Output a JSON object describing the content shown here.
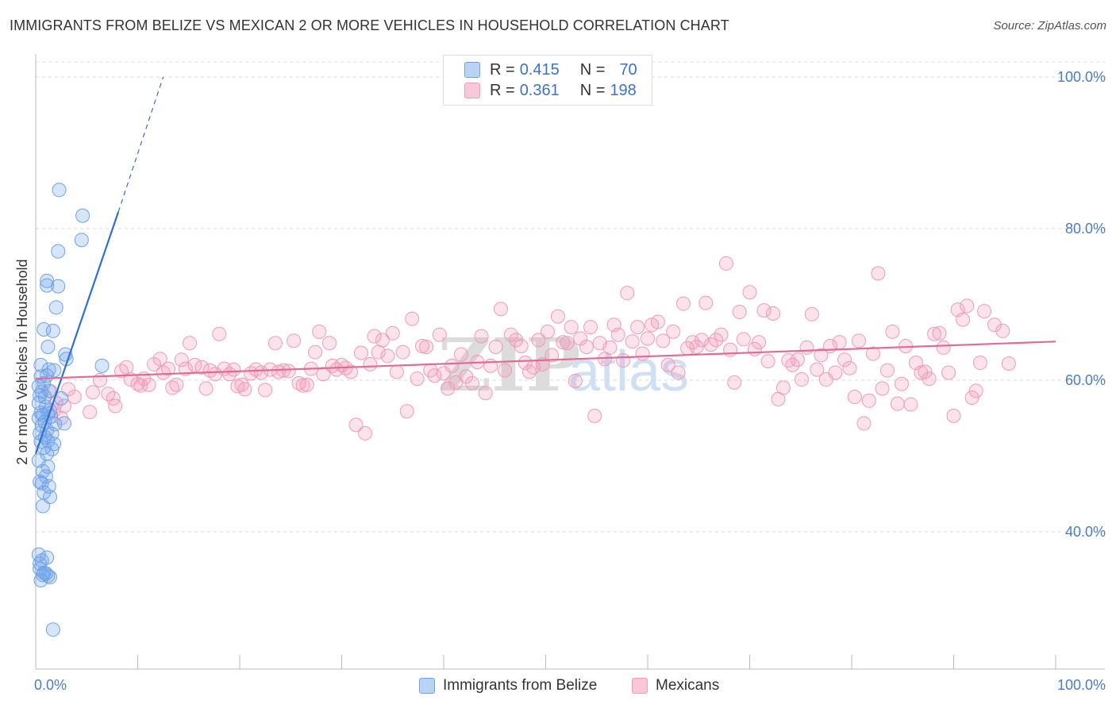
{
  "title": "IMMIGRANTS FROM BELIZE VS MEXICAN 2 OR MORE VEHICLES IN HOUSEHOLD CORRELATION CHART",
  "source": "Source: ZipAtlas.com",
  "watermark": "ZIPatlas",
  "colors": {
    "belize": "#6fa3e8",
    "belize_line": "#2f6fd1",
    "mexican": "#f29ab7",
    "mexican_line": "#e06b96",
    "tick": "#4a7cc9"
  },
  "legend": {
    "rows": [
      {
        "r_label": "R =",
        "r_value": "0.415",
        "n_label": "N =",
        "n_value": "70"
      },
      {
        "r_label": "R =",
        "r_value": "0.361",
        "n_label": "N =",
        "n_value": "198"
      }
    ]
  },
  "bottom_legend": [
    "Immigrants from Belize",
    "Mexicans"
  ],
  "chart_data": {
    "type": "scatter",
    "title": "IMMIGRANTS FROM BELIZE VS MEXICAN 2 OR MORE VEHICLES IN HOUSEHOLD CORRELATION CHART",
    "xlabel": "",
    "ylabel": "2 or more Vehicles in Household",
    "xlim": [
      0,
      100
    ],
    "ylim": [
      20,
      102
    ],
    "x_tick_labels": [
      "0.0%",
      "100.0%"
    ],
    "y_ticks": [
      40,
      60,
      80,
      100
    ],
    "y_tick_labels": [
      "40.0%",
      "60.0%",
      "80.0%",
      "100.0%"
    ],
    "grid": "horizontal dashed",
    "legend_position": "top-center",
    "series": [
      {
        "name": "Immigrants from Belize",
        "color": "#6fa3e8",
        "trend": {
          "x0": 0,
          "y0": 50.3,
          "x1": 8.1,
          "y1": 82.2,
          "dashed_to_x": 12.5,
          "dashed_to_y": 100
        },
        "points": [
          [
            2.3,
            85.1
          ],
          [
            4.6,
            81.7
          ],
          [
            4.5,
            78.5
          ],
          [
            2.2,
            77.0
          ],
          [
            1.1,
            73.1
          ],
          [
            2.2,
            72.4
          ],
          [
            1.1,
            72.5
          ],
          [
            2.0,
            69.6
          ],
          [
            0.8,
            66.7
          ],
          [
            1.7,
            66.5
          ],
          [
            1.2,
            64.4
          ],
          [
            0.5,
            62.0
          ],
          [
            2.9,
            63.4
          ],
          [
            3.0,
            62.8
          ],
          [
            1.3,
            61.4
          ],
          [
            1.8,
            61.3
          ],
          [
            6.5,
            61.9
          ],
          [
            0.5,
            60.5
          ],
          [
            1.1,
            60.6
          ],
          [
            0.8,
            59.6
          ],
          [
            0.3,
            59.2
          ],
          [
            0.6,
            58.5
          ],
          [
            1.3,
            58.6
          ],
          [
            0.4,
            58.0
          ],
          [
            0.9,
            57.8
          ],
          [
            2.5,
            57.6
          ],
          [
            0.3,
            57.0
          ],
          [
            1.0,
            56.5
          ],
          [
            1.4,
            56.0
          ],
          [
            0.5,
            55.7
          ],
          [
            0.7,
            55.4
          ],
          [
            1.2,
            55.6
          ],
          [
            1.5,
            55.2
          ],
          [
            0.3,
            55.0
          ],
          [
            0.9,
            54.5
          ],
          [
            1.9,
            54.2
          ],
          [
            2.8,
            54.3
          ],
          [
            0.6,
            54.0
          ],
          [
            1.1,
            53.4
          ],
          [
            0.4,
            53.0
          ],
          [
            1.6,
            52.9
          ],
          [
            0.9,
            52.5
          ],
          [
            1.2,
            52.0
          ],
          [
            0.5,
            51.9
          ],
          [
            1.8,
            51.6
          ],
          [
            0.8,
            51.1
          ],
          [
            1.6,
            50.9
          ],
          [
            1.1,
            50.3
          ],
          [
            0.3,
            49.4
          ],
          [
            1.2,
            48.6
          ],
          [
            0.7,
            48.0
          ],
          [
            1.0,
            47.3
          ],
          [
            0.4,
            46.6
          ],
          [
            0.6,
            46.4
          ],
          [
            1.3,
            46.0
          ],
          [
            0.8,
            45.2
          ],
          [
            1.4,
            44.6
          ],
          [
            0.7,
            43.4
          ],
          [
            0.3,
            37.0
          ],
          [
            0.6,
            36.2
          ],
          [
            0.4,
            35.8
          ],
          [
            1.0,
            34.5
          ],
          [
            0.7,
            34.3
          ],
          [
            1.2,
            34.2
          ],
          [
            1.4,
            34.0
          ],
          [
            0.5,
            33.6
          ],
          [
            1.7,
            27.1
          ],
          [
            0.8,
            34.6
          ],
          [
            0.4,
            35.1
          ],
          [
            1.1,
            36.6
          ]
        ]
      },
      {
        "name": "Mexicans",
        "color": "#f29ab7",
        "trend": {
          "x0": 0,
          "y0": 60.2,
          "x1": 100,
          "y1": 65.1
        },
        "points": [
          [
            1.5,
            58.5
          ],
          [
            2.0,
            57.0
          ],
          [
            2.8,
            56.6
          ],
          [
            3.2,
            58.8
          ],
          [
            3.8,
            57.8
          ],
          [
            1.8,
            56.0
          ],
          [
            2.5,
            55.0
          ],
          [
            5.3,
            55.8
          ],
          [
            5.6,
            58.4
          ],
          [
            6.3,
            60.0
          ],
          [
            7.1,
            58.2
          ],
          [
            7.6,
            57.6
          ],
          [
            7.8,
            56.6
          ],
          [
            8.4,
            61.2
          ],
          [
            8.9,
            61.7
          ],
          [
            9.3,
            60.1
          ],
          [
            10.0,
            59.5
          ],
          [
            10.3,
            59.3
          ],
          [
            10.6,
            60.2
          ],
          [
            11.1,
            59.4
          ],
          [
            11.6,
            62.1
          ],
          [
            12.2,
            62.8
          ],
          [
            12.5,
            61.0
          ],
          [
            13.0,
            61.5
          ],
          [
            13.4,
            59.0
          ],
          [
            13.8,
            59.4
          ],
          [
            14.3,
            62.7
          ],
          [
            14.7,
            61.5
          ],
          [
            15.1,
            64.9
          ],
          [
            15.6,
            62.0
          ],
          [
            16.3,
            61.7
          ],
          [
            16.7,
            58.9
          ],
          [
            17.1,
            61.3
          ],
          [
            17.6,
            60.8
          ],
          [
            18.0,
            66.1
          ],
          [
            18.5,
            61.5
          ],
          [
            19.0,
            60.8
          ],
          [
            19.4,
            61.4
          ],
          [
            19.8,
            59.2
          ],
          [
            20.2,
            59.4
          ],
          [
            20.5,
            58.8
          ],
          [
            21.1,
            60.9
          ],
          [
            21.6,
            61.4
          ],
          [
            22.1,
            61.0
          ],
          [
            22.5,
            58.7
          ],
          [
            23.0,
            61.4
          ],
          [
            23.5,
            64.9
          ],
          [
            23.8,
            61.1
          ],
          [
            24.3,
            61.3
          ],
          [
            24.8,
            61.2
          ],
          [
            25.3,
            65.2
          ],
          [
            25.8,
            59.6
          ],
          [
            26.2,
            59.3
          ],
          [
            26.6,
            59.4
          ],
          [
            27.0,
            61.5
          ],
          [
            27.4,
            63.7
          ],
          [
            27.8,
            66.4
          ],
          [
            28.2,
            60.8
          ],
          [
            28.8,
            64.9
          ],
          [
            29.1,
            61.9
          ],
          [
            29.5,
            61.4
          ],
          [
            30.0,
            62.0
          ],
          [
            30.4,
            61.6
          ],
          [
            30.9,
            61.1
          ],
          [
            31.4,
            54.1
          ],
          [
            31.9,
            63.6
          ],
          [
            32.3,
            53.0
          ],
          [
            32.8,
            62.1
          ],
          [
            33.2,
            65.8
          ],
          [
            33.6,
            63.7
          ],
          [
            34.0,
            65.3
          ],
          [
            34.5,
            63.2
          ],
          [
            35.0,
            66.2
          ],
          [
            35.4,
            61.1
          ],
          [
            36.0,
            63.7
          ],
          [
            36.4,
            55.9
          ],
          [
            36.9,
            68.1
          ],
          [
            37.4,
            60.2
          ],
          [
            37.9,
            64.5
          ],
          [
            38.3,
            64.4
          ],
          [
            38.7,
            61.3
          ],
          [
            39.1,
            60.6
          ],
          [
            39.6,
            66.0
          ],
          [
            40.0,
            60.9
          ],
          [
            40.4,
            58.9
          ],
          [
            40.8,
            61.9
          ],
          [
            41.2,
            59.7
          ],
          [
            41.7,
            63.4
          ],
          [
            42.2,
            60.5
          ],
          [
            42.8,
            59.6
          ],
          [
            43.3,
            62.4
          ],
          [
            43.7,
            65.8
          ],
          [
            44.1,
            58.3
          ],
          [
            44.6,
            61.9
          ],
          [
            45.1,
            64.4
          ],
          [
            45.6,
            69.4
          ],
          [
            46.0,
            61.3
          ],
          [
            46.6,
            66.0
          ],
          [
            47.1,
            65.3
          ],
          [
            47.6,
            64.5
          ],
          [
            48.0,
            62.3
          ],
          [
            48.4,
            61.1
          ],
          [
            48.8,
            61.7
          ],
          [
            49.3,
            65.3
          ],
          [
            49.7,
            62.1
          ],
          [
            50.2,
            66.4
          ],
          [
            50.6,
            63.3
          ],
          [
            51.2,
            68.4
          ],
          [
            51.7,
            65.0
          ],
          [
            52.1,
            64.9
          ],
          [
            52.5,
            67.0
          ],
          [
            52.9,
            59.9
          ],
          [
            53.4,
            65.5
          ],
          [
            54.0,
            64.4
          ],
          [
            54.4,
            67.0
          ],
          [
            54.8,
            55.3
          ],
          [
            55.3,
            64.9
          ],
          [
            55.8,
            62.8
          ],
          [
            56.3,
            64.3
          ],
          [
            56.7,
            67.3
          ],
          [
            57.1,
            66.0
          ],
          [
            57.6,
            62.6
          ],
          [
            58.0,
            71.5
          ],
          [
            58.5,
            65.1
          ],
          [
            59.0,
            67.0
          ],
          [
            59.5,
            63.5
          ],
          [
            60.0,
            65.5
          ],
          [
            60.4,
            67.3
          ],
          [
            61.0,
            67.7
          ],
          [
            61.5,
            65.2
          ],
          [
            62.0,
            62.0
          ],
          [
            62.5,
            66.4
          ],
          [
            63.0,
            61.0
          ],
          [
            63.5,
            70.1
          ],
          [
            63.9,
            64.2
          ],
          [
            64.4,
            65.0
          ],
          [
            64.8,
            64.4
          ],
          [
            65.3,
            65.3
          ],
          [
            65.7,
            70.2
          ],
          [
            66.2,
            64.7
          ],
          [
            66.7,
            65.3
          ],
          [
            67.2,
            66.0
          ],
          [
            67.7,
            75.4
          ],
          [
            68.1,
            64.0
          ],
          [
            68.5,
            59.7
          ],
          [
            69.0,
            69.0
          ],
          [
            69.4,
            65.4
          ],
          [
            70.0,
            71.6
          ],
          [
            70.5,
            64.1
          ],
          [
            70.9,
            65.0
          ],
          [
            71.4,
            69.2
          ],
          [
            71.8,
            62.5
          ],
          [
            72.3,
            68.8
          ],
          [
            72.8,
            57.5
          ],
          [
            73.3,
            59.0
          ],
          [
            73.8,
            62.6
          ],
          [
            74.2,
            62.0
          ],
          [
            74.7,
            62.7
          ],
          [
            75.1,
            60.1
          ],
          [
            75.6,
            64.3
          ],
          [
            76.1,
            68.7
          ],
          [
            76.6,
            61.4
          ],
          [
            77.0,
            63.3
          ],
          [
            77.5,
            60.1
          ],
          [
            77.9,
            64.5
          ],
          [
            78.4,
            61.0
          ],
          [
            78.8,
            65.0
          ],
          [
            79.3,
            62.7
          ],
          [
            79.8,
            61.6
          ],
          [
            80.3,
            57.8
          ],
          [
            80.7,
            65.2
          ],
          [
            81.2,
            54.3
          ],
          [
            81.7,
            57.3
          ],
          [
            82.1,
            63.5
          ],
          [
            82.6,
            74.1
          ],
          [
            83.0,
            58.9
          ],
          [
            83.5,
            61.3
          ],
          [
            84.0,
            66.4
          ],
          [
            84.5,
            56.9
          ],
          [
            84.9,
            59.5
          ],
          [
            85.3,
            64.5
          ],
          [
            85.8,
            56.8
          ],
          [
            86.3,
            62.3
          ],
          [
            86.8,
            61.0
          ],
          [
            87.2,
            61.1
          ],
          [
            87.6,
            60.2
          ],
          [
            88.1,
            66.1
          ],
          [
            88.6,
            66.2
          ],
          [
            89.0,
            64.3
          ],
          [
            89.5,
            61.0
          ],
          [
            90.0,
            55.3
          ],
          [
            90.4,
            69.3
          ],
          [
            90.9,
            68.0
          ],
          [
            91.3,
            69.8
          ],
          [
            91.8,
            57.7
          ],
          [
            92.2,
            58.6
          ],
          [
            92.6,
            62.3
          ],
          [
            93.0,
            69.1
          ],
          [
            94.0,
            67.3
          ],
          [
            94.8,
            66.5
          ],
          [
            95.4,
            62.2
          ]
        ]
      }
    ]
  }
}
